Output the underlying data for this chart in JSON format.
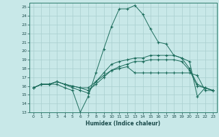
{
  "xlabel": "Humidex (Indice chaleur)",
  "ylabel": "",
  "xlim": [
    -0.5,
    23.5
  ],
  "ylim": [
    13,
    25.5
  ],
  "xticks": [
    0,
    1,
    2,
    3,
    4,
    5,
    6,
    7,
    8,
    9,
    10,
    11,
    12,
    13,
    14,
    15,
    16,
    17,
    18,
    19,
    20,
    21,
    22,
    23
  ],
  "yticks": [
    13,
    14,
    15,
    16,
    17,
    18,
    19,
    20,
    21,
    22,
    23,
    24,
    25
  ],
  "background_color": "#c8e8e8",
  "grid_color": "#a8cece",
  "line_color": "#1a6b5a",
  "lines": [
    {
      "x": [
        0,
        1,
        2,
        3,
        4,
        5,
        6,
        7,
        8,
        9,
        10,
        11,
        12,
        13,
        14,
        15,
        16,
        17,
        18,
        19,
        20,
        21,
        22,
        23
      ],
      "y": [
        15.8,
        16.2,
        16.2,
        16.2,
        15.8,
        15.5,
        13.0,
        14.8,
        17.5,
        20.2,
        22.8,
        24.8,
        24.8,
        25.2,
        24.2,
        22.5,
        21.0,
        20.8,
        19.5,
        19.2,
        18.8,
        14.8,
        15.8,
        15.5
      ]
    },
    {
      "x": [
        0,
        1,
        2,
        3,
        4,
        5,
        6,
        7,
        8,
        9,
        10,
        11,
        12,
        13,
        14,
        15,
        16,
        17,
        18,
        19,
        20,
        21,
        22,
        23
      ],
      "y": [
        15.8,
        16.2,
        16.2,
        16.5,
        16.2,
        15.8,
        15.5,
        15.2,
        16.5,
        17.2,
        17.8,
        18.0,
        18.2,
        17.5,
        17.5,
        17.5,
        17.5,
        17.5,
        17.5,
        17.5,
        17.5,
        17.2,
        15.5,
        15.5
      ]
    },
    {
      "x": [
        0,
        1,
        2,
        3,
        4,
        5,
        6,
        7,
        8,
        9,
        10,
        11,
        12,
        13,
        14,
        15,
        16,
        17,
        18,
        19,
        20,
        21,
        22,
        23
      ],
      "y": [
        15.8,
        16.2,
        16.2,
        16.5,
        16.2,
        16.0,
        15.8,
        15.5,
        16.2,
        17.0,
        17.8,
        18.2,
        18.5,
        18.8,
        18.8,
        19.0,
        19.0,
        19.0,
        19.0,
        18.8,
        17.8,
        16.0,
        15.8,
        15.5
      ]
    },
    {
      "x": [
        0,
        1,
        2,
        3,
        4,
        5,
        6,
        7,
        8,
        9,
        10,
        11,
        12,
        13,
        14,
        15,
        16,
        17,
        18,
        19,
        20,
        21,
        22,
        23
      ],
      "y": [
        15.8,
        16.2,
        16.2,
        16.5,
        16.2,
        16.0,
        15.8,
        15.8,
        16.5,
        17.5,
        18.5,
        18.8,
        19.0,
        19.2,
        19.2,
        19.5,
        19.5,
        19.5,
        19.5,
        19.2,
        18.0,
        16.2,
        15.8,
        15.5
      ]
    }
  ]
}
